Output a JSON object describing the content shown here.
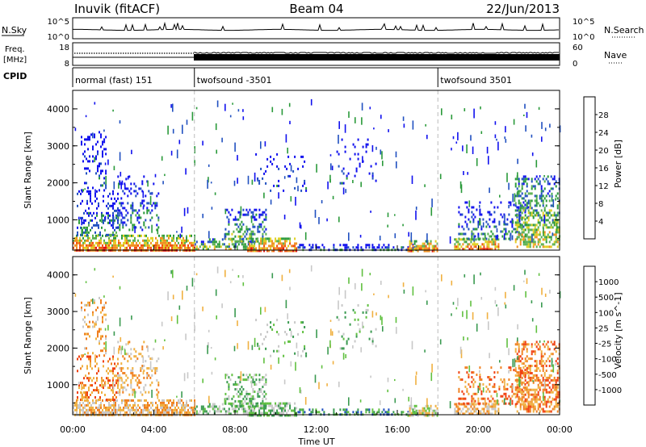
{
  "header": {
    "station": "Inuvik (fitACF)",
    "beam": "Beam 04",
    "date": "22/Jun/2013"
  },
  "top_panels": {
    "nsky_label": "N.Sky",
    "nsky_ticks": [
      "10^5",
      "10^0"
    ],
    "nsearch_label": "N.Search",
    "nsearch_ticks": [
      "10^5",
      "10^0"
    ],
    "freq_label_1": "Freq.",
    "freq_label_2": "[MHz]",
    "freq_ticks": [
      "18",
      "8"
    ],
    "nave_label": "Nave",
    "nave_ticks": [
      "60",
      "0"
    ],
    "cpid_label": "CPID",
    "cpid_segments": [
      {
        "name": "normal (fast) 151",
        "start_hour": 0,
        "end_hour": 6
      },
      {
        "name": "twofsound -3501",
        "start_hour": 6,
        "end_hour": 18
      },
      {
        "name": "twofsound 3501",
        "start_hour": 18,
        "end_hour": 24
      }
    ]
  },
  "x_axis": {
    "label": "Time UT",
    "ticks": [
      "00:00",
      "04:00",
      "08:00",
      "12:00",
      "16:00",
      "20:00",
      "00:00"
    ]
  },
  "colors": {
    "power": [
      "#1010ee",
      "#2050c0",
      "#2a9a3a",
      "#5ab050",
      "#e0d020",
      "#f09020",
      "#f05010",
      "#e01010"
    ],
    "velocity": [
      "#e01010",
      "#f04010",
      "#f08020",
      "#f0b040",
      "#c8c8c8",
      "#60c040",
      "#3a9a50",
      "#2050c0",
      "#2030a0"
    ]
  },
  "chart_data": [
    {
      "type": "heatmap",
      "panel": "power",
      "ylabel": "Slant Range [km]",
      "yticks": [
        "1000",
        "2000",
        "3000",
        "4000"
      ],
      "ylim": [
        180,
        4500
      ],
      "xlim": [
        0,
        24
      ],
      "colorbar_label": "Power [dB]",
      "colorbar_ticks": [
        "4",
        "8",
        "12",
        "16",
        "20",
        "24",
        "28"
      ],
      "colorbar_range": [
        0,
        30
      ],
      "dominant_echo_bands": [
        {
          "start_hour": 0.5,
          "end_hour": 2.0,
          "range_km": [
            200,
            500
          ],
          "level_db": 28
        },
        {
          "start_hour": 3.8,
          "end_hour": 6.0,
          "range_km": [
            200,
            500
          ],
          "level_db": 28
        },
        {
          "start_hour": 9.5,
          "end_hour": 11.0,
          "range_km": [
            200,
            500
          ],
          "level_db": 27
        },
        {
          "start_hour": 16.8,
          "end_hour": 18.0,
          "range_km": [
            200,
            400
          ],
          "level_db": 26
        },
        {
          "start_hour": 19.0,
          "end_hour": 20.8,
          "range_km": [
            200,
            450
          ],
          "level_db": 25
        },
        {
          "start_hour": 22.5,
          "end_hour": 24.0,
          "range_km": [
            400,
            1400
          ],
          "level_db": 22
        }
      ]
    },
    {
      "type": "heatmap",
      "panel": "velocity",
      "ylabel": "Slant Range [km]",
      "yticks": [
        "1000",
        "2000",
        "3000",
        "4000"
      ],
      "ylim": [
        180,
        4500
      ],
      "xlim": [
        0,
        24
      ],
      "colorbar_label": "Velocity [m s^-1]",
      "colorbar_ticks": [
        "-1000",
        "-500",
        "-100",
        "-25",
        "25",
        "100",
        "500",
        "1000"
      ],
      "colorbar_range": [
        -1500,
        1500
      ]
    }
  ]
}
